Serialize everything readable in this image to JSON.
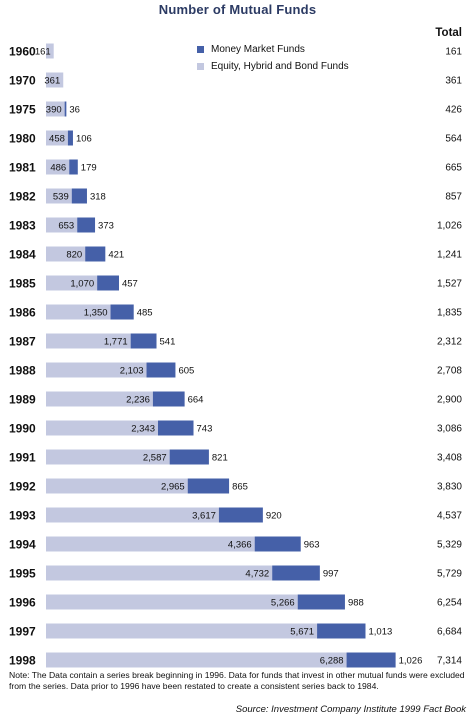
{
  "chart_data": {
    "type": "bar",
    "title": "Number of Mutual Funds",
    "stacked": true,
    "orientation": "horizontal",
    "total_header": "Total",
    "categories": [
      "1960",
      "1970",
      "1975",
      "1980",
      "1981",
      "1982",
      "1983",
      "1984",
      "1985",
      "1986",
      "1987",
      "1988",
      "1989",
      "1990",
      "1991",
      "1992",
      "1993",
      "1994",
      "1995",
      "1996",
      "1997",
      "1998"
    ],
    "series": [
      {
        "name": "Equity, Hybrid and Bond Funds",
        "color": "#c3c8e0",
        "values": [
          161,
          361,
          390,
          458,
          486,
          539,
          653,
          820,
          1070,
          1350,
          1771,
          2103,
          2236,
          2343,
          2587,
          2965,
          3617,
          4366,
          4732,
          5266,
          5671,
          6288
        ],
        "labels": [
          "161",
          "361",
          "390",
          "458",
          "486",
          "539",
          "653",
          "820",
          "1,070",
          "1,350",
          "1,771",
          "2,103",
          "2,236",
          "2,343",
          "2,587",
          "2,965",
          "3,617",
          "4,366",
          "4,732",
          "5,266",
          "5,671",
          "6,288"
        ]
      },
      {
        "name": "Money Market Funds",
        "color": "#4560a8",
        "values": [
          0,
          0,
          36,
          106,
          179,
          318,
          373,
          421,
          457,
          485,
          541,
          605,
          664,
          743,
          821,
          865,
          920,
          963,
          997,
          988,
          1013,
          1026
        ],
        "labels": [
          "",
          "",
          "36",
          "106",
          "179",
          "318",
          "373",
          "421",
          "457",
          "485",
          "541",
          "605",
          "664",
          "743",
          "821",
          "865",
          "920",
          "963",
          "997",
          "988",
          "1,013",
          "1,026"
        ]
      }
    ],
    "totals": [
      "161",
      "361",
      "426",
      "564",
      "665",
      "857",
      "1,026",
      "1,241",
      "1,527",
      "1,835",
      "2,312",
      "2,708",
      "2,900",
      "3,086",
      "3,408",
      "3,830",
      "4,537",
      "5,329",
      "5,729",
      "6,254",
      "6,684",
      "7,314"
    ],
    "legend_placement": "top-center",
    "grid": false
  },
  "note": "Note: The Data contain a series break beginning in 1996. Data for funds that invest in other mutual funds were excluded from the series. Data prior to 1996 have been restated to create a consistent series back to 1984.",
  "source": "Source: Investment Company Institute 1999 Fact Book"
}
